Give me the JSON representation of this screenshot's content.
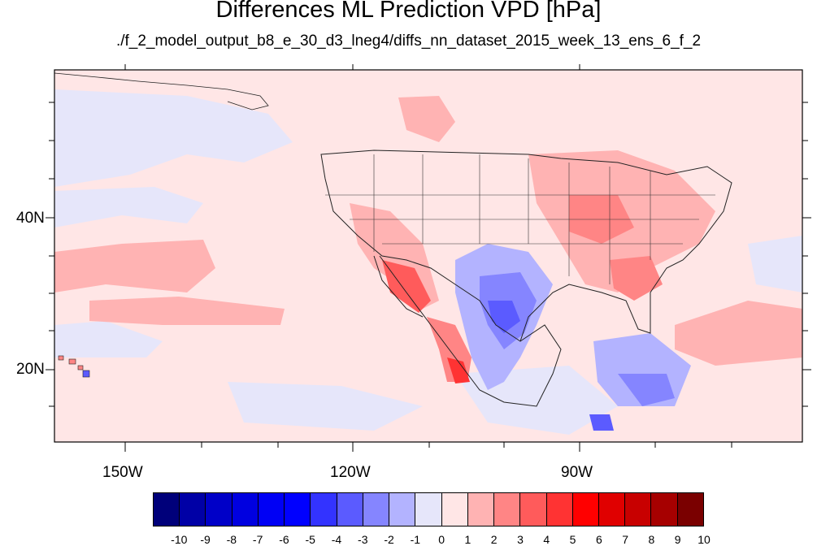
{
  "title": "Differences ML Prediction VPD [hPa]",
  "subtitle": "./f_2_model_output_b8_e_30_d3_lneg4/diffs_nn_dataset_2015_week_13_ens_6_f_2",
  "map": {
    "lat_labels": [
      "40N",
      "20N"
    ],
    "lon_labels": [
      "150W",
      "120W",
      "90W"
    ],
    "background_color": "#ffe6e6"
  },
  "colorbar": {
    "labels": [
      "-10",
      "-9",
      "-8",
      "-7",
      "-6",
      "-5",
      "-4",
      "-3",
      "-2",
      "-1",
      "0",
      "1",
      "2",
      "3",
      "4",
      "5",
      "6",
      "7",
      "8",
      "9",
      "10"
    ],
    "colors": [
      "#00007a",
      "#0000a6",
      "#0000c8",
      "#0000e0",
      "#0000f5",
      "#0000ff",
      "#3333ff",
      "#5b5bff",
      "#8585ff",
      "#b3b3ff",
      "#e6e6fa",
      "#ffe6e6",
      "#ffb3b3",
      "#ff8585",
      "#ff5b5b",
      "#ff3333",
      "#ff0000",
      "#e00000",
      "#c80000",
      "#a60000",
      "#7a0000"
    ]
  }
}
